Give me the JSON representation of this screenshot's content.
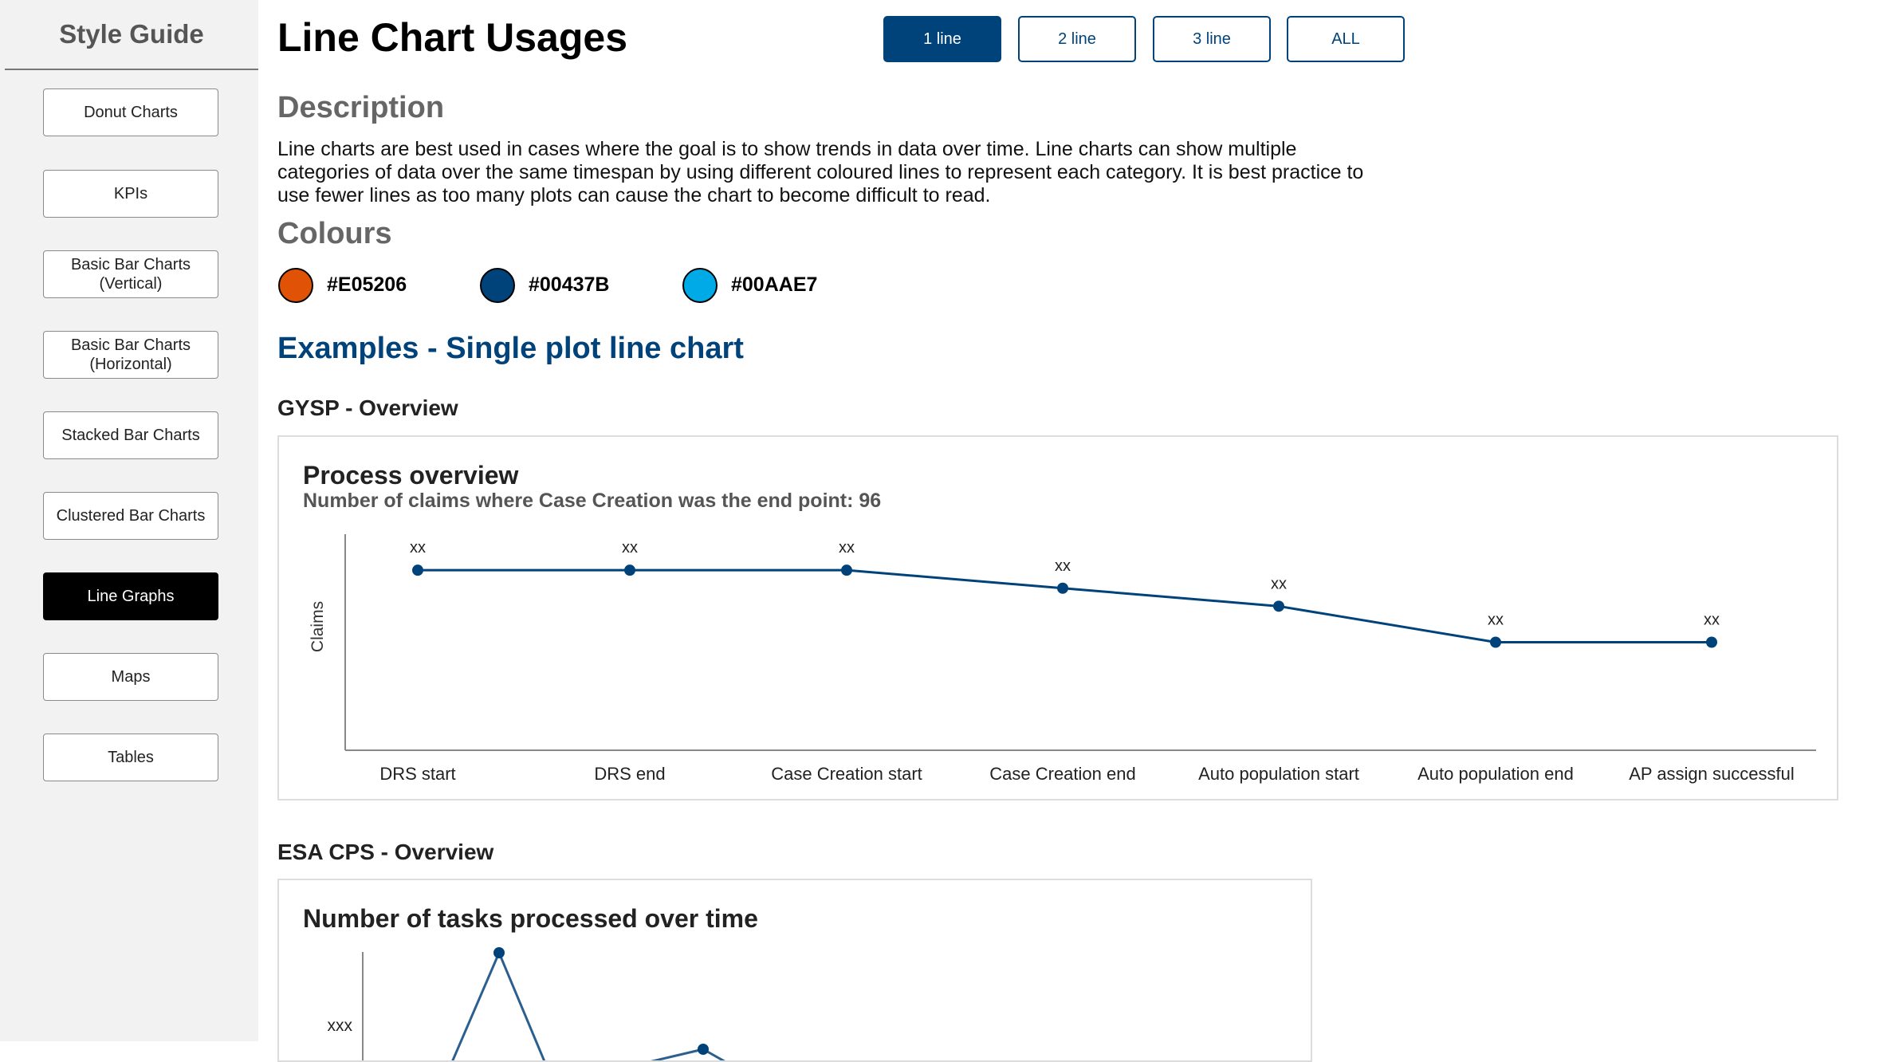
{
  "sidebar": {
    "title": "Style Guide",
    "items": [
      {
        "label": "Donut Charts",
        "active": false
      },
      {
        "label": "KPIs",
        "active": false
      },
      {
        "label": "Basic Bar Charts\n(Vertical)",
        "active": false
      },
      {
        "label": "Basic Bar Charts\n(Horizontal)",
        "active": false
      },
      {
        "label": "Stacked Bar Charts",
        "active": false
      },
      {
        "label": "Clustered Bar Charts",
        "active": false
      },
      {
        "label": "Line Graphs",
        "active": true
      },
      {
        "label": "Maps",
        "active": false
      },
      {
        "label": "Tables",
        "active": false
      }
    ]
  },
  "header": {
    "title": "Line Chart Usages",
    "tabs": [
      {
        "label": "1 line",
        "active": true
      },
      {
        "label": "2 line",
        "active": false
      },
      {
        "label": "3 line",
        "active": false
      },
      {
        "label": "ALL",
        "active": false
      }
    ]
  },
  "description": {
    "heading": "Description",
    "text": "Line charts are best used in cases where the goal is to show trends in data over time. Line charts can show multiple categories of data over the same timespan by using different coloured lines to represent each category. It is best practice to use fewer lines as too many plots can cause the chart to become difficult to read."
  },
  "colours": {
    "heading": "Colours",
    "swatches": [
      {
        "hex": "#E05206",
        "label": "#E05206"
      },
      {
        "hex": "#00437B",
        "label": "#00437B"
      },
      {
        "hex": "#00AAE7",
        "label": "#00AAE7"
      }
    ]
  },
  "examples": {
    "heading": "Examples - Single plot line chart",
    "sections": [
      {
        "heading": "GYSP - Overview"
      },
      {
        "heading": "ESA CPS - Overview"
      }
    ]
  },
  "chart_data": [
    {
      "type": "line",
      "title": "Process overview",
      "subtitle": "Number of claims where Case Creation was the end point: 96",
      "ylabel": "Claims",
      "xlabel": "",
      "categories": [
        "DRS start",
        "DRS end",
        "Case Creation start",
        "Case Creation end",
        "Auto population start",
        "Auto population end",
        "AP assign successful"
      ],
      "series": [
        {
          "values": [
            100,
            100,
            100,
            90,
            80,
            60,
            60
          ],
          "color": "#00437B"
        }
      ],
      "data_labels": [
        "xx",
        "xx",
        "xx",
        "xx",
        "xx",
        "xx",
        "xx"
      ],
      "ylim": [
        0,
        120
      ],
      "grid": false,
      "legend": "none"
    },
    {
      "type": "line",
      "title": "Number of tasks processed over time",
      "ylabel": "",
      "xlabel": "",
      "y_tick_labels": [
        "xxx"
      ],
      "series": [
        {
          "values": [
            20,
            95,
            20,
            40,
            20
          ],
          "color": "#00437B"
        }
      ],
      "ylim": [
        0,
        100
      ],
      "grid": false,
      "legend": "none"
    }
  ]
}
